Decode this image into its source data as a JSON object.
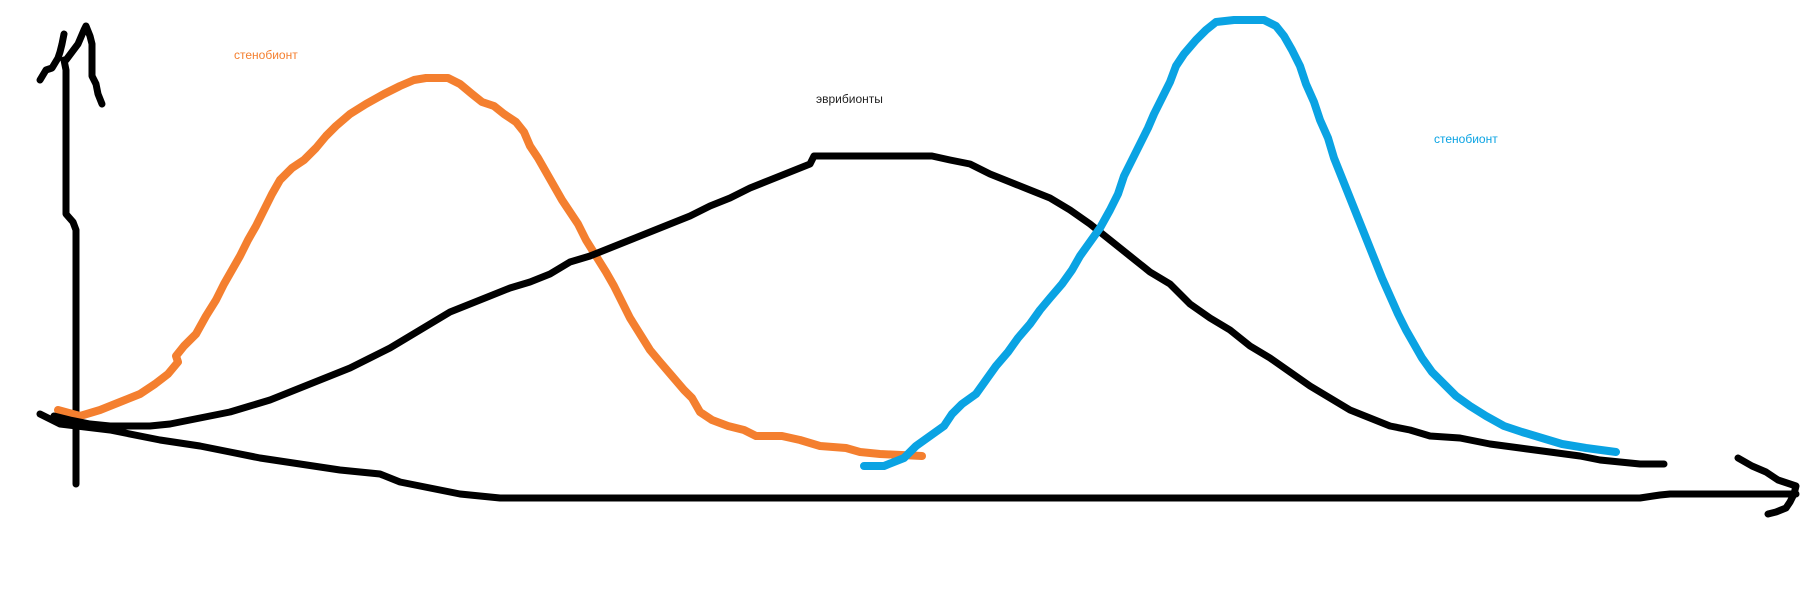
{
  "labels": {
    "left": "стенобионт",
    "middle": "эврибионты",
    "right": "стенобионт"
  },
  "colors": {
    "axes": "#000000",
    "left_curve": "#f47f2f",
    "middle_curve": "#000000",
    "right_curve": "#0aa3e3",
    "background": "#ffffff"
  },
  "icons": [
    "arrow-up-icon",
    "arrow-right-icon"
  ]
}
